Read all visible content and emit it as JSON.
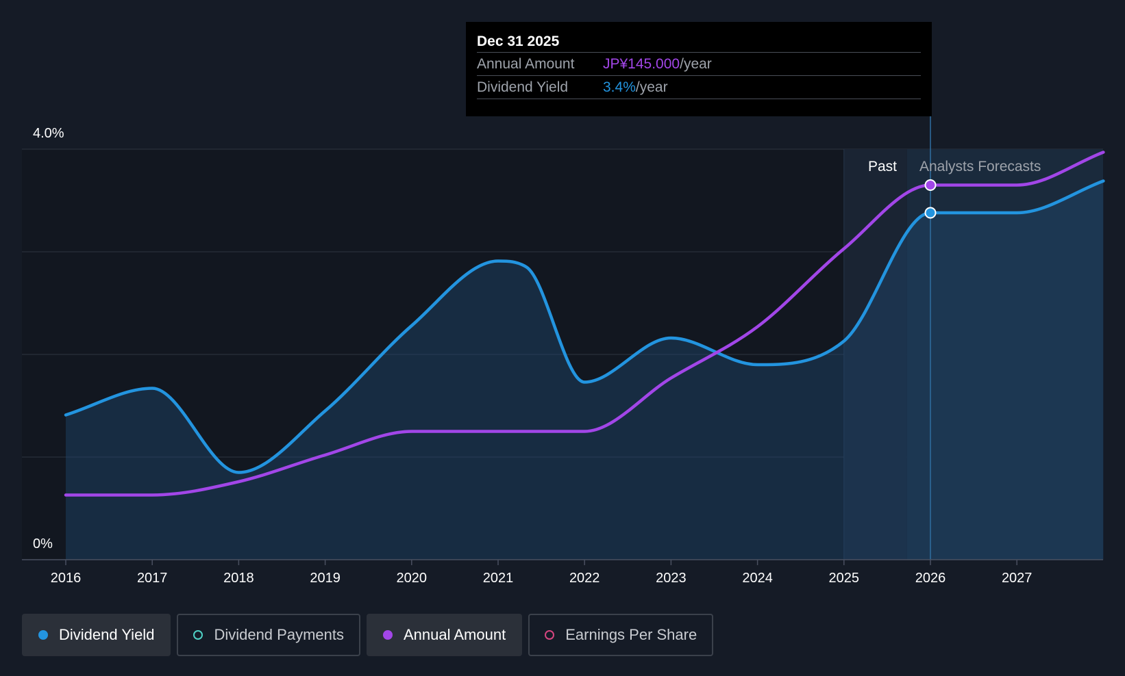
{
  "chart_data": {
    "type": "line",
    "x_range": [
      2015.5,
      2028.0
    ],
    "x_ticks": [
      "2016",
      "2017",
      "2018",
      "2019",
      "2020",
      "2021",
      "2022",
      "2023",
      "2024",
      "2025",
      "2026",
      "2027"
    ],
    "y_range": [
      0,
      4.0
    ],
    "y_tick_labels": {
      "top": "4.0%",
      "bottom": "0%"
    },
    "gridlines_y": [
      1.0,
      2.0,
      3.0,
      4.0
    ],
    "series": [
      {
        "name": "Dividend Yield",
        "color": "#2394df",
        "area": true,
        "points": [
          [
            2016.0,
            1.41
          ],
          [
            2017.0,
            1.67
          ],
          [
            2018.0,
            0.85
          ],
          [
            2019.0,
            1.45
          ],
          [
            2020.0,
            2.28
          ],
          [
            2021.0,
            2.91
          ],
          [
            2021.33,
            2.85
          ],
          [
            2022.0,
            1.73
          ],
          [
            2023.0,
            2.16
          ],
          [
            2024.0,
            1.9
          ],
          [
            2025.0,
            2.13
          ],
          [
            2026.0,
            3.38
          ],
          [
            2027.0,
            3.38
          ],
          [
            2028.0,
            3.69
          ]
        ]
      },
      {
        "name": "Annual Amount",
        "color": "#a246e8",
        "area": false,
        "points": [
          [
            2016.0,
            0.63
          ],
          [
            2017.0,
            0.63
          ],
          [
            2018.0,
            0.76
          ],
          [
            2019.0,
            1.02
          ],
          [
            2020.0,
            1.25
          ],
          [
            2021.0,
            1.25
          ],
          [
            2022.0,
            1.25
          ],
          [
            2023.0,
            1.77
          ],
          [
            2024.0,
            2.27
          ],
          [
            2025.0,
            3.03
          ],
          [
            2026.0,
            3.65
          ],
          [
            2027.0,
            3.65
          ],
          [
            2028.0,
            3.97
          ]
        ]
      }
    ],
    "highlight_x": 2026.0,
    "past_region_start": 2025.0,
    "forecast_start": 2025.73,
    "region_labels": {
      "past": "Past",
      "forecast": "Analysts Forecasts"
    }
  },
  "tooltip": {
    "date": "Dec 31 2025",
    "rows": [
      {
        "label": "Annual Amount",
        "value": "JP¥145.000",
        "unit": "/year",
        "color": "#a246e8"
      },
      {
        "label": "Dividend Yield",
        "value": "3.4%",
        "unit": "/year",
        "color": "#2394df"
      }
    ]
  },
  "legend": [
    {
      "label": "Dividend Yield",
      "color": "#2394df",
      "active": true,
      "filled": true
    },
    {
      "label": "Dividend Payments",
      "color": "#4fd1c5",
      "active": false,
      "filled": false
    },
    {
      "label": "Annual Amount",
      "color": "#a246e8",
      "active": true,
      "filled": true
    },
    {
      "label": "Earnings Per Share",
      "color": "#d6457f",
      "active": false,
      "filled": false
    }
  ]
}
